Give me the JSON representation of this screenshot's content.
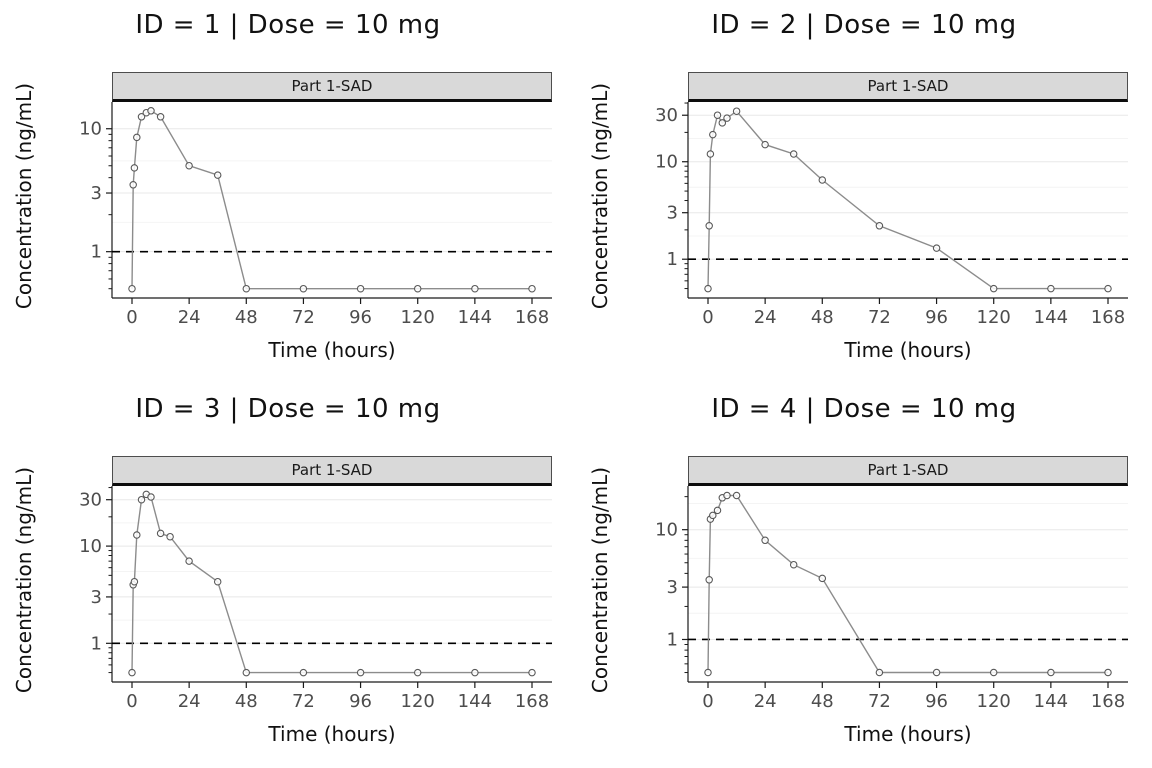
{
  "style": {
    "line": "#8c8c8c",
    "point_stroke": "#595959",
    "point_fill": "#ffffff",
    "grid_major": "#e8e8e8",
    "grid_minor": "#f4f4f4",
    "axis_line": "#1a1a1a",
    "axis_text": "#4d4d4d",
    "lloq_color": "#000000",
    "strip_bg": "#d9d9d9",
    "strip_border": "#4d4d4d",
    "title_color": "#111111"
  },
  "chart_data": [
    {
      "type": "line",
      "title": "ID = 1 | Dose = 10 mg",
      "strip_label": "Part 1-SAD",
      "xlabel": "Time (hours)",
      "ylabel": "Concentration (ng/mL)",
      "y_scale": "log10",
      "grid": "horizontal-only",
      "legend": "none",
      "lloq": 1,
      "x_ticks": [
        0,
        24,
        48,
        72,
        96,
        120,
        144,
        168
      ],
      "y_ticks": [
        1,
        3,
        10
      ],
      "xlim": [
        -8.4,
        176.4
      ],
      "ylim": [
        0.42,
        16.5
      ],
      "x": [
        0,
        0.5,
        1,
        2,
        4,
        6,
        8,
        12,
        24,
        36,
        48,
        72,
        96,
        120,
        144,
        168
      ],
      "y": [
        0.5,
        3.5,
        4.8,
        8.5,
        12.5,
        13.5,
        14,
        12.5,
        5,
        4.2,
        0.5,
        0.5,
        0.5,
        0.5,
        0.5,
        0.5
      ]
    },
    {
      "type": "line",
      "title": "ID = 2 | Dose = 10 mg",
      "strip_label": "Part 1-SAD",
      "xlabel": "Time (hours)",
      "ylabel": "Concentration (ng/mL)",
      "y_scale": "log10",
      "grid": "horizontal-only",
      "legend": "none",
      "lloq": 1,
      "x_ticks": [
        0,
        24,
        48,
        72,
        96,
        120,
        144,
        168
      ],
      "y_ticks": [
        1,
        3,
        10,
        30
      ],
      "xlim": [
        -8.4,
        176.4
      ],
      "ylim": [
        0.4,
        41
      ],
      "x": [
        0,
        0.5,
        1,
        2,
        4,
        6,
        8,
        12,
        24,
        36,
        48,
        72,
        96,
        120,
        144,
        168
      ],
      "y": [
        0.5,
        2.2,
        12,
        19,
        30,
        25,
        28,
        33,
        15,
        12,
        6.5,
        2.2,
        1.3,
        0.5,
        0.5,
        0.5
      ]
    },
    {
      "type": "line",
      "title": "ID = 3 | Dose = 10 mg",
      "strip_label": "Part 1-SAD",
      "xlabel": "Time (hours)",
      "ylabel": "Concentration (ng/mL)",
      "y_scale": "log10",
      "grid": "horizontal-only",
      "legend": "none",
      "lloq": 1,
      "x_ticks": [
        0,
        24,
        48,
        72,
        96,
        120,
        144,
        168
      ],
      "y_ticks": [
        1,
        3,
        10,
        30
      ],
      "xlim": [
        -8.4,
        176.4
      ],
      "ylim": [
        0.4,
        41.5
      ],
      "x": [
        0,
        0.5,
        1,
        2,
        4,
        6,
        8,
        12,
        16,
        24,
        36,
        48,
        72,
        96,
        120,
        144,
        168
      ],
      "y": [
        0.5,
        4,
        4.3,
        13,
        30,
        34,
        32,
        13.5,
        12.5,
        7,
        4.3,
        0.5,
        0.5,
        0.5,
        0.5,
        0.5,
        0.5
      ]
    },
    {
      "type": "line",
      "title": "ID = 4 | Dose = 10 mg",
      "strip_label": "Part 1-SAD",
      "xlabel": "Time (hours)",
      "ylabel": "Concentration (ng/mL)",
      "y_scale": "log10",
      "grid": "horizontal-only",
      "legend": "none",
      "lloq": 1,
      "x_ticks": [
        0,
        24,
        48,
        72,
        96,
        120,
        144,
        168
      ],
      "y_ticks": [
        1,
        3,
        10
      ],
      "xlim": [
        -8.4,
        176.4
      ],
      "ylim": [
        0.41,
        25
      ],
      "x": [
        0,
        0.5,
        1,
        2,
        4,
        6,
        8,
        12,
        24,
        36,
        48,
        72,
        96,
        120,
        144,
        168
      ],
      "y": [
        0.5,
        3.5,
        12.5,
        13.5,
        15,
        19.5,
        20.5,
        20.5,
        8,
        4.8,
        3.6,
        0.5,
        0.5,
        0.5,
        0.5,
        0.5
      ]
    }
  ]
}
